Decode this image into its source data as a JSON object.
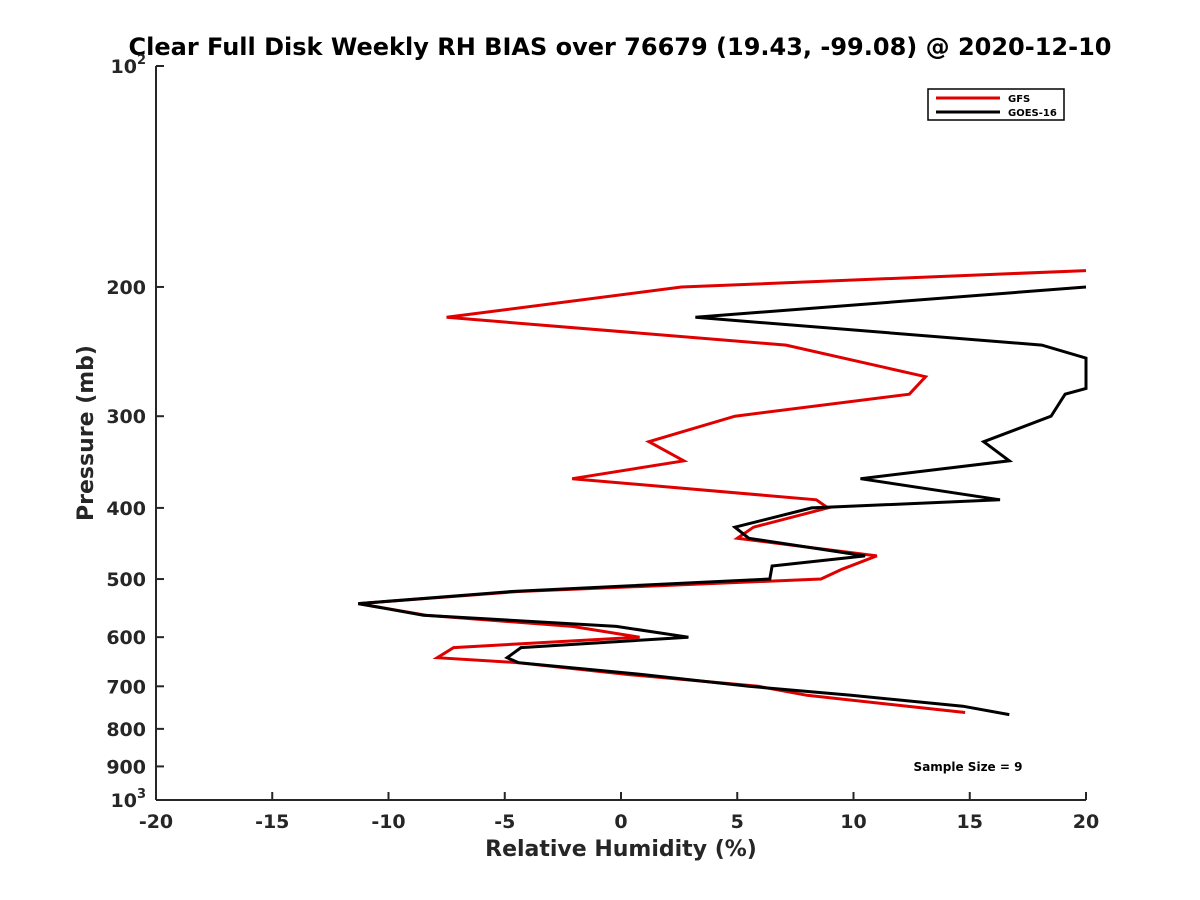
{
  "chart_data": {
    "type": "line",
    "title": "Clear Full Disk Weekly RH BIAS over 76679 (19.43, -99.08) @ 2020-12-10",
    "xlabel": "Relative Humidity (%)",
    "ylabel": "Pressure (mb)",
    "xlim": [
      -20,
      20
    ],
    "ylim": [
      100,
      1000
    ],
    "y_scale": "log",
    "y_reversed": true,
    "x_ticks": [
      -20,
      -15,
      -10,
      -5,
      0,
      5,
      10,
      15,
      20
    ],
    "x_tick_labels": [
      "-20",
      "-15",
      "-10",
      "-5",
      "0",
      "5",
      "10",
      "15",
      "20"
    ],
    "y_ticks": [
      100,
      200,
      300,
      400,
      500,
      600,
      700,
      800,
      900,
      1000
    ],
    "y_tick_labels": [
      {
        "base": "10",
        "exp": "2"
      },
      {
        "base": "200",
        "exp": ""
      },
      {
        "base": "300",
        "exp": ""
      },
      {
        "base": "400",
        "exp": ""
      },
      {
        "base": "500",
        "exp": ""
      },
      {
        "base": "600",
        "exp": ""
      },
      {
        "base": "700",
        "exp": ""
      },
      {
        "base": "800",
        "exp": ""
      },
      {
        "base": "900",
        "exp": ""
      },
      {
        "base": "10",
        "exp": "3"
      }
    ],
    "grid": false,
    "legend_position": "top-right",
    "annotation": "Sample Size = 9",
    "series": [
      {
        "name": "GFS",
        "color": "#e00000",
        "points": [
          [
            20,
            190
          ],
          [
            2.6,
            200
          ],
          [
            -7.5,
            220
          ],
          [
            7.1,
            240
          ],
          [
            13.1,
            265
          ],
          [
            12.4,
            280
          ],
          [
            4.9,
            300
          ],
          [
            1.2,
            325
          ],
          [
            2.7,
            345
          ],
          [
            -2.1,
            365
          ],
          [
            8.4,
            390
          ],
          [
            8.9,
            400
          ],
          [
            5.7,
            425
          ],
          [
            5.0,
            440
          ],
          [
            11.0,
            465
          ],
          [
            9.5,
            485
          ],
          [
            8.6,
            500
          ],
          [
            -4.4,
            520
          ],
          [
            -11.3,
            540
          ],
          [
            -8.4,
            560
          ],
          [
            -2.1,
            580
          ],
          [
            0.8,
            600
          ],
          [
            -7.2,
            620
          ],
          [
            -7.9,
            640
          ],
          [
            -4.4,
            650
          ],
          [
            0.4,
            675
          ],
          [
            5.9,
            700
          ],
          [
            8.0,
            720
          ],
          [
            14.8,
            760
          ]
        ]
      },
      {
        "name": "GOES-16",
        "color": "#000000",
        "points": [
          [
            20,
            200
          ],
          [
            3.2,
            220
          ],
          [
            18.1,
            240
          ],
          [
            20,
            250
          ],
          [
            20,
            275
          ],
          [
            19.1,
            280
          ],
          [
            18.5,
            300
          ],
          [
            15.6,
            325
          ],
          [
            16.7,
            345
          ],
          [
            10.3,
            365
          ],
          [
            16.3,
            390
          ],
          [
            8.2,
            400
          ],
          [
            4.9,
            425
          ],
          [
            5.5,
            440
          ],
          [
            10.5,
            465
          ],
          [
            6.5,
            480
          ],
          [
            6.4,
            500
          ],
          [
            -4.7,
            520
          ],
          [
            -11.3,
            540
          ],
          [
            -8.5,
            560
          ],
          [
            -0.2,
            580
          ],
          [
            2.9,
            600
          ],
          [
            -4.3,
            620
          ],
          [
            -4.9,
            640
          ],
          [
            -4.4,
            650
          ],
          [
            1.0,
            675
          ],
          [
            5.5,
            700
          ],
          [
            9.9,
            720
          ],
          [
            14.7,
            745
          ],
          [
            16.7,
            765
          ]
        ]
      }
    ]
  }
}
